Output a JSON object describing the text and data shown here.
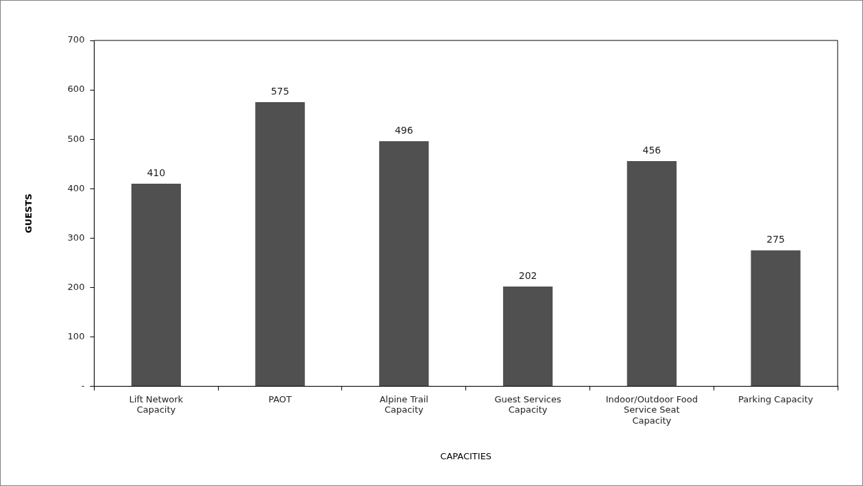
{
  "chart_data": {
    "type": "bar",
    "xlabel": "CAPACITIES",
    "ylabel": "GUESTS",
    "categories": [
      "Lift Network Capacity",
      "PAOT",
      "Alpine Trail Capacity",
      "Guest Services Capacity",
      "Indoor/Outdoor Food Service Seat Capacity",
      "Parking Capacity"
    ],
    "values": [
      410,
      575,
      496,
      202,
      456,
      275
    ],
    "color": "#505050",
    "ylim": [
      0,
      700
    ],
    "yticks": [
      {
        "value": 0,
        "label": "-"
      },
      100,
      200,
      300,
      400,
      500,
      600,
      700
    ],
    "grid": false,
    "data_labels": true
  }
}
